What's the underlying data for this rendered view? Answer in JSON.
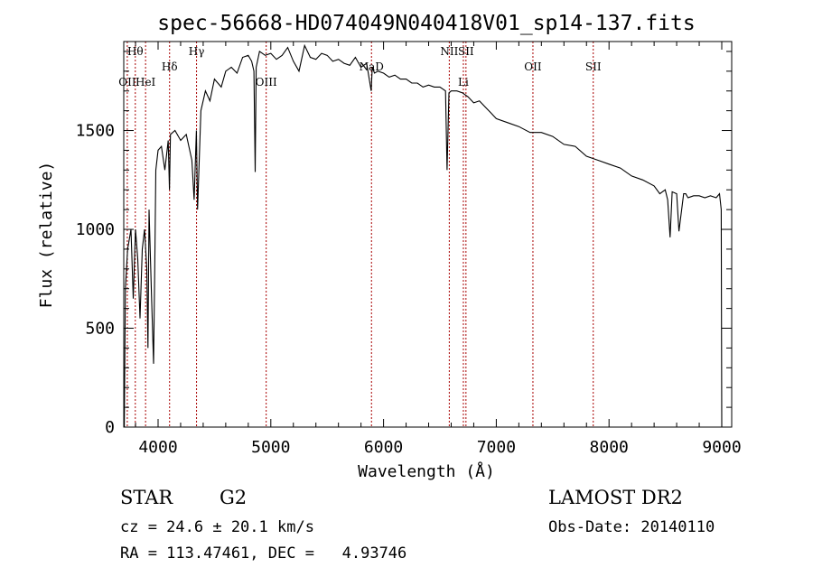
{
  "chart_data": {
    "type": "line",
    "title": "spec-56668-HD074049N040418V01_sp14-137.fits",
    "xlabel": "Wavelength (Å)",
    "ylabel": "Flux (relative)",
    "xlim": [
      3700,
      9100
    ],
    "ylim": [
      0,
      1950
    ],
    "xticks": [
      4000,
      5000,
      6000,
      7000,
      8000,
      9000
    ],
    "yticks": [
      0,
      500,
      1000,
      1500
    ],
    "grid": false,
    "series": [
      {
        "x": [
          3700,
          3710,
          3730,
          3760,
          3780,
          3800,
          3820,
          3840,
          3860,
          3880,
          3900,
          3910,
          3920,
          3940,
          3960,
          3970,
          3980,
          4000,
          4030,
          4060,
          4090,
          4101,
          4110,
          4150,
          4200,
          4250,
          4300,
          4320,
          4340,
          4350,
          4380,
          4420,
          4460,
          4500,
          4560,
          4600,
          4650,
          4700,
          4750,
          4800,
          4830,
          4850,
          4861,
          4870,
          4900,
          4950,
          5000,
          5050,
          5100,
          5150,
          5200,
          5250,
          5300,
          5350,
          5400,
          5450,
          5500,
          5550,
          5600,
          5650,
          5700,
          5750,
          5800,
          5850,
          5890,
          5900,
          5920,
          5950,
          6000,
          6050,
          6100,
          6150,
          6200,
          6250,
          6300,
          6350,
          6400,
          6450,
          6500,
          6550,
          6563,
          6580,
          6600,
          6650,
          6700,
          6750,
          6800,
          6850,
          6900,
          6950,
          7000,
          7100,
          7200,
          7300,
          7400,
          7500,
          7600,
          7700,
          7800,
          7900,
          8000,
          8100,
          8200,
          8300,
          8400,
          8450,
          8498,
          8520,
          8542,
          8560,
          8600,
          8620,
          8662,
          8680,
          8700,
          8750,
          8800,
          8850,
          8900,
          8950,
          8980,
          8995,
          9000
        ],
        "values": [
          0,
          700,
          900,
          1000,
          650,
          1000,
          850,
          550,
          900,
          1000,
          800,
          400,
          1100,
          700,
          320,
          800,
          1300,
          1400,
          1420,
          1300,
          1450,
          1200,
          1480,
          1500,
          1450,
          1480,
          1350,
          1150,
          1500,
          1100,
          1600,
          1700,
          1650,
          1760,
          1720,
          1800,
          1820,
          1790,
          1870,
          1880,
          1850,
          1800,
          1290,
          1820,
          1900,
          1880,
          1890,
          1860,
          1880,
          1920,
          1850,
          1800,
          1930,
          1870,
          1860,
          1890,
          1880,
          1850,
          1860,
          1840,
          1830,
          1870,
          1820,
          1840,
          1700,
          1820,
          1790,
          1800,
          1790,
          1770,
          1780,
          1760,
          1760,
          1740,
          1740,
          1720,
          1730,
          1720,
          1720,
          1700,
          1300,
          1690,
          1700,
          1700,
          1690,
          1670,
          1640,
          1650,
          1620,
          1590,
          1560,
          1540,
          1520,
          1490,
          1490,
          1470,
          1430,
          1420,
          1370,
          1350,
          1330,
          1310,
          1270,
          1250,
          1220,
          1180,
          1200,
          1150,
          960,
          1190,
          1180,
          990,
          1180,
          1180,
          1160,
          1170,
          1170,
          1160,
          1170,
          1160,
          1180,
          1100,
          0
        ]
      }
    ],
    "lines": [
      {
        "label": "OII",
        "x": 3727,
        "row": 2
      },
      {
        "label": "Hθ",
        "x": 3798,
        "row": 0
      },
      {
        "label": "HeI",
        "x": 3889,
        "row": 2
      },
      {
        "label": "Hδ",
        "x": 4102,
        "row": 1
      },
      {
        "label": "Hγ",
        "x": 4341,
        "row": 0
      },
      {
        "label": "OIII",
        "x": 4959,
        "row": 2
      },
      {
        "label": "NaD",
        "x": 5893,
        "row": 1
      },
      {
        "label": "NII",
        "x": 6583,
        "row": 0
      },
      {
        "label": "Li",
        "x": 6708,
        "row": 2
      },
      {
        "label": "SII",
        "x": 6731,
        "row": 0
      },
      {
        "label": "OII",
        "x": 7325,
        "row": 1
      },
      {
        "label": "SII",
        "x": 7860,
        "row": 1
      }
    ]
  },
  "info": {
    "class_label": "STAR",
    "subclass": "G2",
    "survey": "LAMOST DR2",
    "cz": "cz = 24.6 ± 20.1 km/s",
    "obs_date": "Obs-Date: 20140110",
    "radec": "RA = 113.47461, DEC =   4.93746"
  },
  "colors": {
    "spectrum": "#000000",
    "marker": "#a80000"
  }
}
